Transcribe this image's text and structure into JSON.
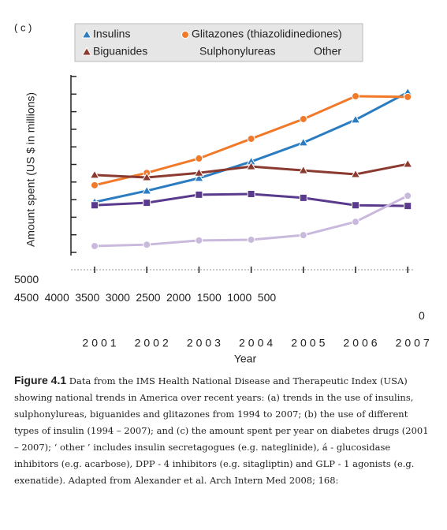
{
  "chart_data": {
    "type": "line",
    "panel_label": "( c )",
    "y_label": "Amount spent (US $ in millions)",
    "x_label": "Year",
    "categories": [
      "2001",
      "2002",
      "2003",
      "2004",
      "2005",
      "2006",
      "2007"
    ],
    "series": [
      {
        "name": "Insulins",
        "color": "#2b7cc0",
        "marker": "triangle",
        "legend_marker": true,
        "values": [
          1430,
          1750,
          2110,
          2580,
          3120,
          3770,
          4550
        ]
      },
      {
        "name": "Glitazones (thiazolidinediones)",
        "color": "#f07a2a",
        "marker": "circle",
        "legend_marker": true,
        "values": [
          1910,
          2260,
          2670,
          3230,
          3790,
          4440,
          4420
        ]
      },
      {
        "name": "Biguanides",
        "color": "#8b3a2f",
        "marker": "triangle",
        "legend_marker": true,
        "values": [
          2200,
          2130,
          2260,
          2440,
          2330,
          2220,
          2510
        ]
      },
      {
        "name": "Sulphonylureas",
        "color": "#5a3a8c",
        "marker": "square",
        "legend_marker": false,
        "values": [
          1340,
          1410,
          1640,
          1660,
          1550,
          1340,
          1320
        ]
      },
      {
        "name": "Other",
        "color": "#c9b9dd",
        "marker": "circle",
        "legend_marker": false,
        "values": [
          180,
          220,
          340,
          360,
          490,
          870,
          1610
        ]
      }
    ],
    "ylim": [
      0,
      5000
    ],
    "yticks": [
      5000,
      4500,
      4000,
      3500,
      3000,
      2500,
      2000,
      1500,
      1000,
      500,
      0
    ]
  },
  "caption": {
    "label": "Figure 4.1",
    "text": "Data from the IMS Health National Disease and Therapeutic Index (USA) showing national trends in America over recent years: (a) trends in the use of insulins, sulphonylureas, biguanides and glitazones from 1994 to 2007; (b) the use of different types of insulin (1994 – 2007); and (c) the amount spent per year on diabetes drugs (2001 – 2007); ‘ other ’ includes insulin secretagogues (e.g. nateglinide), á - glucosidase inhibitors (e.g. acarbose), DPP - 4 inhibitors (e.g. sitagliptin) and GLP - 1 agonists (e.g. exenatide). Adapted from Alexander et al. Arch Intern Med 2008; 168:"
  }
}
